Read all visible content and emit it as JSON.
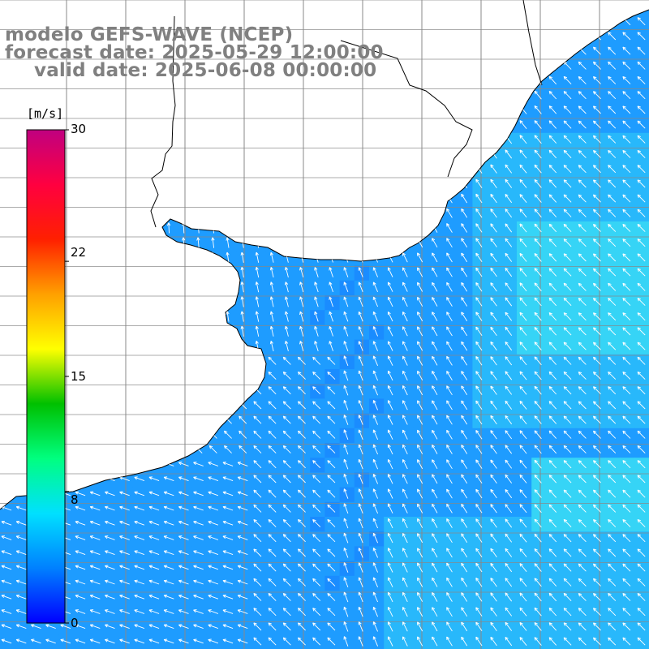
{
  "title": {
    "line1": "modelo GEFS-WAVE (NCEP)",
    "line2": "forecast date: 2025-05-29 12:00:00",
    "line3": "valid date: 2025-06-08 00:00:00"
  },
  "colorbar": {
    "unit": "[m/s]",
    "tick_labels": [
      "30",
      "22",
      "15",
      "8",
      "0"
    ],
    "tick_values": [
      30,
      22,
      15,
      8,
      0
    ],
    "min": 0,
    "max": 30,
    "colors": [
      "#0000ff",
      "#0080ff",
      "#00e0ff",
      "#00ff80",
      "#00c000",
      "#ffff00",
      "#ffa000",
      "#ff2000",
      "#ff0040",
      "#c00080"
    ]
  },
  "map": {
    "ocean_color": "#1fa0ff",
    "land_color": "#ffffff",
    "grid_color": "#888888",
    "wind_direction": "from the southeast"
  }
}
